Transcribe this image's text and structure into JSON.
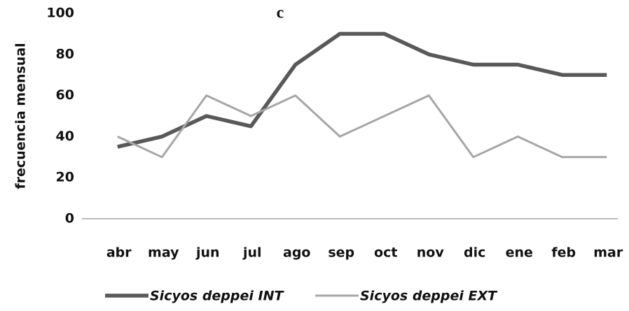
{
  "chart_data": {
    "type": "line",
    "title": "c",
    "ylabel": "frecuencia mensual",
    "categories": [
      "abr",
      "may",
      "jun",
      "jul",
      "ago",
      "sep",
      "oct",
      "nov",
      "dic",
      "ene",
      "feb",
      "mar"
    ],
    "series": [
      {
        "name": "Sicyos deppei INT",
        "color": "#595959",
        "values": [
          35,
          40,
          50,
          45,
          75,
          90,
          90,
          80,
          75,
          75,
          70,
          70
        ]
      },
      {
        "name": "Sicyos deppei EXT",
        "color": "#a6a6a6",
        "values": [
          40,
          30,
          60,
          50,
          60,
          40,
          50,
          60,
          30,
          40,
          30,
          30
        ]
      }
    ],
    "ylim": [
      0,
      100
    ],
    "yticks": [
      0,
      20,
      40,
      60,
      80,
      100
    ],
    "grid": false,
    "legend": "bottom"
  }
}
